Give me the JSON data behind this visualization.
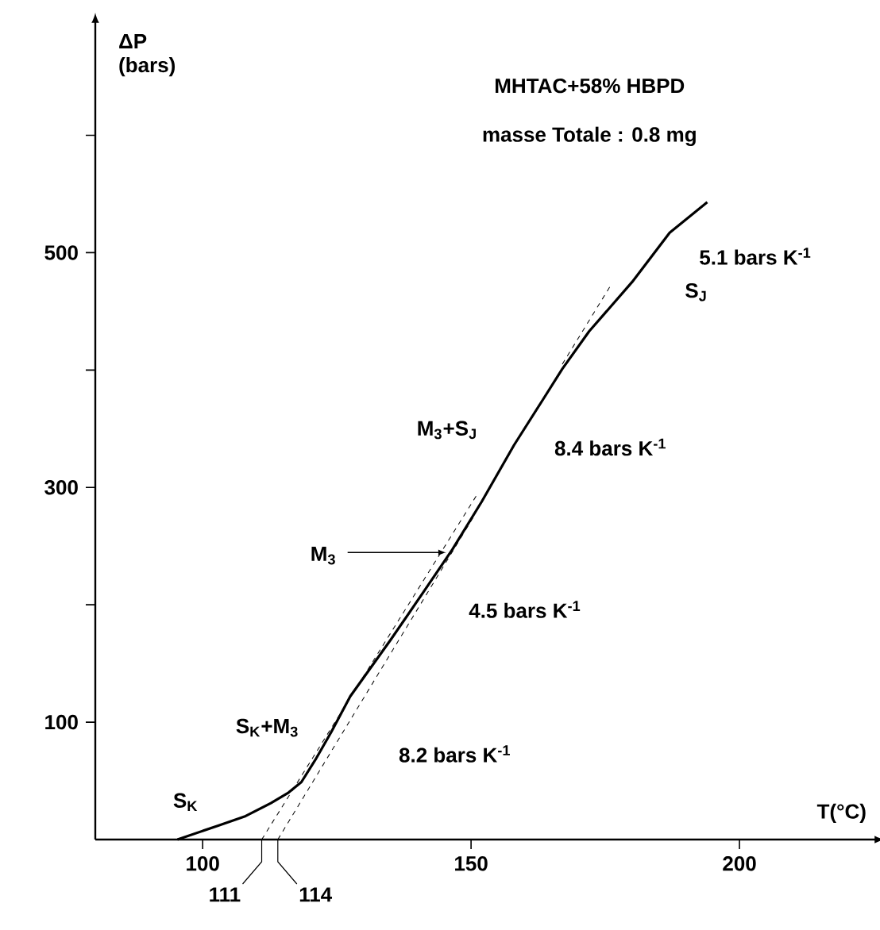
{
  "chart_data": {
    "type": "line",
    "title": "MHTAC+58% HBPD",
    "subtitle": "masse Totale : 0.8 mg",
    "xlabel": "T(°C)",
    "ylabel": "ΔP (bars)",
    "xlim": [
      80,
      225
    ],
    "ylim": [
      0,
      695
    ],
    "xticks": [
      100,
      150,
      200
    ],
    "yticks": [
      100,
      {
        "value": 200,
        "label": null
      },
      300,
      {
        "value": 400,
        "label": null
      },
      500,
      {
        "value": 600,
        "label": null
      }
    ],
    "series": [
      {
        "line_style": "solid",
        "color": "#000000",
        "x": [
          95.3,
          103,
          108,
          112.7,
          116,
          118.4,
          121,
          124,
          127.5,
          135,
          141,
          146.5,
          152,
          158,
          163,
          167,
          172,
          180,
          187,
          194
        ],
        "values": [
          0,
          12,
          20,
          31,
          40,
          49,
          68,
          92,
          122,
          170,
          210,
          247,
          288,
          336,
          372,
          401,
          433,
          475,
          517,
          543
        ]
      },
      {
        "line_style": "dashed",
        "color": "#000000",
        "x": [
          111,
          151
        ],
        "values": [
          0,
          293
        ]
      },
      {
        "line_style": "dashed",
        "color": "#000000",
        "x": [
          114,
          150.6
        ],
        "values": [
          0,
          276
        ]
      },
      {
        "line_style": "dashed",
        "color": "#000000",
        "x": [
          167,
          176
        ],
        "values": [
          405,
          472
        ]
      }
    ],
    "annotations": [
      "5.1 bars K$^{-1}$",
      "S$_{J}$",
      "M$_{3}$+S$_{J}$",
      "8.4 bars K$^{-1}$",
      "M$_{3}$",
      "4.5 bars K$^{-1}$",
      "S$_{K}$+M$_{3}$",
      "8.2 bars K$^{-1}$",
      "S$_{K}$",
      {
        "text": "111",
        "x": 111,
        "y": 0
      },
      {
        "text": "114",
        "x": 114,
        "y": 0
      }
    ]
  }
}
